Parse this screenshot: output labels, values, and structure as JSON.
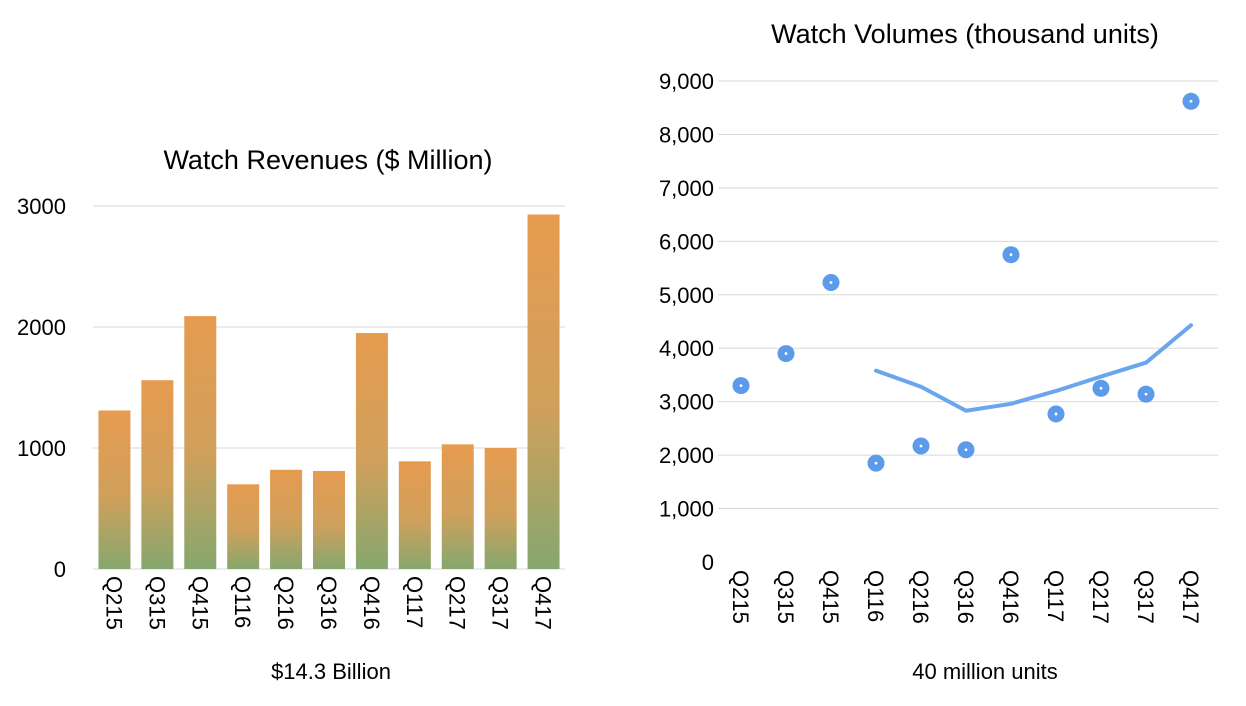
{
  "chart_data": [
    {
      "type": "bar",
      "title": "Watch Revenues ($ Million)",
      "xlabel": "$14.3 Billion",
      "ylabel": "",
      "categories": [
        "Q215",
        "Q315",
        "Q415",
        "Q116",
        "Q216",
        "Q316",
        "Q416",
        "Q117",
        "Q217",
        "Q317",
        "Q417"
      ],
      "values": [
        1310,
        1560,
        2090,
        700,
        820,
        810,
        1950,
        890,
        1030,
        1000,
        2930
      ],
      "ylim": [
        0,
        3000
      ],
      "yticks": [
        "0",
        "1000",
        "2000",
        "3000"
      ],
      "grid": true,
      "colors": {
        "bar_top": "#e69b4f",
        "bar_bottom": "#86a76e"
      }
    },
    {
      "type": "scatter",
      "title": "Watch Volumes (thousand units)",
      "xlabel": "40 million units",
      "ylabel": "",
      "categories": [
        "Q215",
        "Q315",
        "Q415",
        "Q116",
        "Q216",
        "Q316",
        "Q416",
        "Q117",
        "Q217",
        "Q317",
        "Q417"
      ],
      "series": [
        {
          "type": "scatter",
          "values": [
            3300,
            3900,
            5230,
            1850,
            2170,
            2100,
            5750,
            2770,
            3250,
            3140,
            8620
          ]
        },
        {
          "type": "line",
          "values": [
            null,
            null,
            null,
            3580,
            3280,
            2830,
            2960,
            3200,
            3470,
            3730,
            4430
          ]
        }
      ],
      "ylim": [
        0,
        9000
      ],
      "yticks": [
        "0",
        "1,000",
        "2,000",
        "3,000",
        "4,000",
        "5,000",
        "6,000",
        "7,000",
        "8,000",
        "9,000"
      ],
      "grid": true,
      "colors": {
        "marker": "#5b9bea",
        "line": "#6aa6ee"
      }
    }
  ]
}
